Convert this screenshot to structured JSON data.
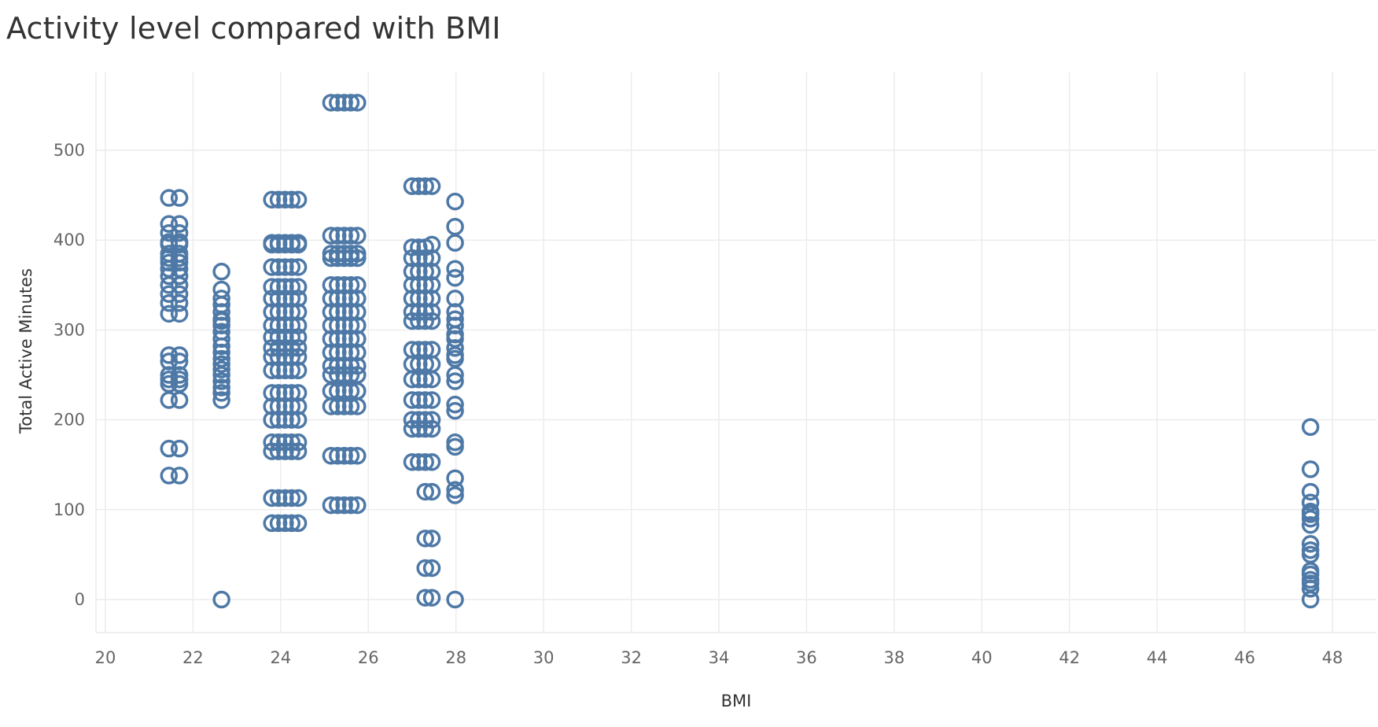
{
  "chart_data": {
    "type": "scatter",
    "title": "Activity level compared with BMI",
    "xlabel": "BMI",
    "ylabel": "Total Active Minutes",
    "xlim": [
      20,
      48
    ],
    "ylim": [
      0,
      550
    ],
    "x_ticks": [
      20,
      22,
      24,
      26,
      28,
      30,
      32,
      34,
      36,
      38,
      40,
      42,
      44,
      46,
      48
    ],
    "y_ticks": [
      0,
      100,
      200,
      300,
      400,
      500
    ],
    "grid": true,
    "marker": "open-circle",
    "color": "#4e79a7",
    "series": [
      {
        "x": [
          21.45,
          21.45,
          21.45,
          21.45,
          21.45,
          21.45,
          21.45,
          21.45,
          21.45,
          21.45,
          21.45,
          21.45,
          21.45,
          21.45,
          21.45,
          21.45,
          21.45,
          21.45,
          21.45,
          21.45,
          21.45,
          21.45,
          21.69,
          21.69,
          21.69,
          21.69,
          21.69,
          21.69,
          21.69,
          21.69,
          21.69,
          21.69,
          21.69,
          21.69,
          21.69,
          21.69,
          21.69,
          21.69,
          21.69,
          21.69,
          21.69,
          21.69,
          21.69,
          21.69
        ],
        "y": [
          447,
          418,
          408,
          398,
          385,
          375,
          368,
          360,
          350,
          340,
          330,
          318,
          272,
          265,
          250,
          245,
          240,
          222,
          168,
          138,
          395,
          380,
          447,
          418,
          408,
          398,
          385,
          375,
          368,
          360,
          350,
          340,
          330,
          318,
          272,
          265,
          250,
          245,
          240,
          222,
          168,
          138,
          395,
          380
        ]
      },
      {
        "x": [
          22.65,
          22.65,
          22.65,
          22.65,
          22.65,
          22.65,
          22.65,
          22.65,
          22.65,
          22.65,
          22.65,
          22.65,
          22.65,
          22.65,
          22.65,
          22.65,
          22.65,
          22.65,
          22.65,
          22.65,
          22.65
        ],
        "y": [
          365,
          345,
          335,
          328,
          320,
          312,
          305,
          298,
          290,
          282,
          275,
          268,
          262,
          256,
          250,
          243,
          236,
          230,
          222,
          310,
          0
        ]
      },
      {
        "x": [
          23.8,
          23.95,
          24.1,
          24.25,
          24.4,
          23.8,
          23.95,
          24.1,
          24.25,
          24.4,
          23.8,
          23.95,
          24.1,
          24.25,
          24.4,
          23.8,
          23.95,
          24.1,
          24.25,
          24.4,
          23.8,
          23.95,
          24.1,
          24.25,
          24.4,
          23.8,
          23.95,
          24.1,
          24.25,
          24.4,
          23.8,
          23.95,
          24.1,
          24.25,
          24.4,
          23.8,
          23.95,
          24.1,
          24.25,
          24.4,
          23.8,
          23.95,
          24.1,
          24.25,
          24.4,
          23.8,
          23.95,
          24.1,
          24.25,
          24.4,
          23.8,
          23.95,
          24.1,
          24.25,
          24.4,
          23.8,
          23.95,
          24.1,
          24.25,
          24.4,
          23.8,
          23.95,
          24.1,
          24.25,
          24.4,
          23.8,
          23.95,
          24.1,
          24.25,
          24.4,
          23.8,
          23.95,
          24.1,
          24.25,
          24.4,
          23.8,
          23.95,
          24.1,
          24.25,
          24.4,
          23.8,
          23.95,
          24.1,
          24.25,
          24.4,
          23.8,
          23.95,
          24.1,
          24.25,
          24.4,
          23.8,
          23.95,
          24.1,
          24.25,
          24.4
        ],
        "y": [
          445,
          445,
          445,
          445,
          445,
          397,
          397,
          397,
          397,
          397,
          370,
          370,
          370,
          370,
          370,
          348,
          348,
          348,
          348,
          348,
          335,
          335,
          335,
          335,
          335,
          320,
          320,
          320,
          320,
          320,
          305,
          305,
          305,
          305,
          305,
          292,
          292,
          292,
          292,
          292,
          280,
          280,
          280,
          280,
          280,
          270,
          270,
          270,
          270,
          270,
          255,
          255,
          255,
          255,
          255,
          230,
          230,
          230,
          230,
          230,
          215,
          215,
          215,
          215,
          215,
          200,
          200,
          200,
          200,
          200,
          175,
          175,
          175,
          175,
          175,
          165,
          165,
          165,
          165,
          165,
          113,
          113,
          113,
          113,
          113,
          85,
          85,
          85,
          85,
          85,
          395,
          395,
          395,
          395,
          395
        ]
      },
      {
        "x": [
          25.15,
          25.3,
          25.45,
          25.6,
          25.75,
          25.15,
          25.3,
          25.45,
          25.6,
          25.75,
          25.15,
          25.3,
          25.45,
          25.6,
          25.75,
          25.15,
          25.3,
          25.45,
          25.6,
          25.75,
          25.15,
          25.3,
          25.45,
          25.6,
          25.75,
          25.15,
          25.3,
          25.45,
          25.6,
          25.75,
          25.15,
          25.3,
          25.45,
          25.6,
          25.75,
          25.15,
          25.3,
          25.45,
          25.6,
          25.75,
          25.15,
          25.3,
          25.45,
          25.6,
          25.75,
          25.15,
          25.3,
          25.45,
          25.6,
          25.75,
          25.15,
          25.3,
          25.45,
          25.6,
          25.75,
          25.15,
          25.3,
          25.45,
          25.6,
          25.75,
          25.15,
          25.3,
          25.45,
          25.6,
          25.75,
          25.15,
          25.3,
          25.45,
          25.6,
          25.75,
          25.15,
          25.3,
          25.45,
          25.6,
          25.75,
          25.15,
          25.3,
          25.45,
          25.6,
          25.75
        ],
        "y": [
          553,
          553,
          553,
          553,
          553,
          405,
          405,
          405,
          405,
          405,
          385,
          385,
          385,
          385,
          385,
          350,
          350,
          350,
          350,
          350,
          335,
          335,
          335,
          335,
          335,
          320,
          320,
          320,
          320,
          320,
          305,
          305,
          305,
          305,
          305,
          290,
          290,
          290,
          290,
          290,
          275,
          275,
          275,
          275,
          275,
          260,
          260,
          260,
          260,
          260,
          250,
          250,
          250,
          250,
          250,
          232,
          232,
          232,
          232,
          232,
          215,
          215,
          215,
          215,
          215,
          160,
          160,
          160,
          160,
          160,
          105,
          105,
          105,
          105,
          105,
          380,
          380,
          380,
          380,
          380
        ]
      },
      {
        "x": [
          27.0,
          27.15,
          27.3,
          27.45,
          27.0,
          27.15,
          27.3,
          27.45,
          27.0,
          27.15,
          27.3,
          27.45,
          27.0,
          27.15,
          27.3,
          27.45,
          27.0,
          27.15,
          27.3,
          27.45,
          27.0,
          27.15,
          27.3,
          27.45,
          27.0,
          27.15,
          27.3,
          27.45,
          27.0,
          27.15,
          27.3,
          27.45,
          27.0,
          27.15,
          27.3,
          27.45,
          27.0,
          27.15,
          27.3,
          27.45,
          27.0,
          27.15,
          27.3,
          27.45,
          27.0,
          27.15,
          27.3,
          27.45,
          27.0,
          27.15,
          27.3,
          27.45,
          27.0,
          27.15,
          27.3,
          27.45,
          27.0,
          27.15,
          27.3,
          27.45,
          27.3,
          27.45,
          27.3,
          27.45,
          27.3,
          27.45,
          27.3,
          27.45
        ],
        "y": [
          460,
          460,
          460,
          460,
          392,
          392,
          392,
          395,
          380,
          380,
          380,
          380,
          365,
          365,
          365,
          365,
          350,
          350,
          350,
          350,
          335,
          335,
          335,
          335,
          320,
          320,
          320,
          320,
          310,
          310,
          310,
          310,
          278,
          278,
          278,
          278,
          262,
          262,
          262,
          262,
          245,
          245,
          245,
          245,
          222,
          222,
          222,
          222,
          200,
          200,
          200,
          200,
          190,
          190,
          190,
          190,
          153,
          153,
          153,
          153,
          120,
          120,
          68,
          68,
          35,
          35,
          2,
          2
        ]
      },
      {
        "x": [
          27.98,
          27.98,
          27.98,
          27.98,
          27.98,
          27.98,
          27.98,
          27.98,
          27.98,
          27.98,
          27.98,
          27.98,
          27.98,
          27.98,
          27.98,
          27.98,
          27.98,
          27.98,
          27.98,
          27.98,
          27.98,
          27.98,
          27.98,
          27.98
        ],
        "y": [
          443,
          415,
          397,
          368,
          358,
          335,
          320,
          312,
          295,
          290,
          272,
          268,
          250,
          243,
          217,
          210,
          175,
          170,
          135,
          122,
          116,
          305,
          280,
          0
        ]
      },
      {
        "x": [
          47.5,
          47.5,
          47.5,
          47.5,
          47.5,
          47.5,
          47.5,
          47.5,
          47.5,
          47.5,
          47.5,
          47.5,
          47.5,
          47.5,
          47.5,
          47.5,
          47.5
        ],
        "y": [
          192,
          145,
          120,
          108,
          98,
          90,
          83,
          55,
          50,
          32,
          28,
          18,
          12,
          0,
          62,
          95,
          22
        ]
      }
    ]
  }
}
